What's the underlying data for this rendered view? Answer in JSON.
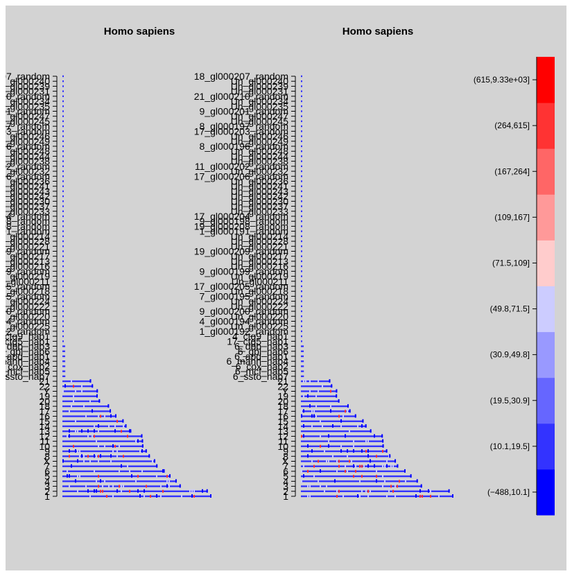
{
  "chart_data": [
    {
      "type": "heatmap",
      "title": "Homo sapiens",
      "chromosomes": [
        "1",
        "2",
        "3",
        "4",
        "5",
        "6",
        "7",
        "X",
        "8",
        "9",
        "10",
        "11",
        "12",
        "13",
        "14",
        "15",
        "16",
        "17",
        "18",
        "20",
        "19",
        "Y",
        "22",
        "21",
        "6_ssto_hap7",
        "6_mcf_hap5",
        "6_cox_hap2",
        "6_mann_hap4",
        "6_apd_hap1",
        "6_qbl_hap6",
        "6_dbb_hap3",
        "17_ctg5_hap1",
        "4_ctg9_hap1",
        "1_gl000192_random",
        "Un_gl000225",
        "4_gl000194_random",
        "Un_gl000220",
        "9_gl000200_random",
        "Un_gl000222",
        "Un_gl000224",
        "7_gl000195_random",
        "Un_gl000218",
        "17_gl000205_random",
        "Un_gl000211",
        "Un_gl000219",
        "9_gl000199_random",
        "Un_gl000216",
        "Un_gl000213",
        "Un_gl000217",
        "19_gl000209_random",
        "Un_gl000221",
        "Un_gl000228",
        "Un_gl000214",
        "1_gl000191_random",
        "19_gl000208_random",
        "9_gl000198_random",
        "17_gl000204_random",
        "Un_gl000233",
        "Un_gl000237",
        "Un_gl000230",
        "Un_gl000242",
        "Un_gl000243",
        "Un_gl000241",
        "Un_gl000236",
        "17_gl000206_random",
        "Un_gl000232",
        "11_gl000202_random",
        "Un_gl000238",
        "Un_gl000244",
        "Un_gl000248",
        "8_gl000196_random",
        "Un_gl000249",
        "Un_gl000246",
        "17_gl000203_random",
        "8_gl000197_random",
        "Un_gl000245",
        "Un_gl000247",
        "9_gl000201_random",
        "Un_gl000235",
        "Un_gl000234",
        "21_gl000210_random",
        "Un_gl000231",
        "Un_gl000239",
        "Un_gl000240",
        "18_gl000207_random"
      ],
      "relative_length": [
        249.3,
        243.2,
        198.0,
        191.2,
        180.9,
        171.1,
        159.1,
        155.3,
        146.4,
        141.2,
        135.5,
        135.0,
        133.9,
        115.2,
        107.3,
        102.5,
        90.4,
        81.2,
        78.1,
        63.0,
        59.1,
        59.4,
        51.3,
        48.1,
        4.9,
        4.8,
        4.8,
        4.7,
        4.6,
        4.6,
        4.6,
        1.7,
        0.6,
        0.5,
        0.2,
        0.2,
        0.2,
        0.2,
        0.2,
        0.2,
        0.2,
        0.2,
        0.2,
        0.2,
        0.2,
        0.2,
        0.2,
        0.2,
        0.2,
        0.2,
        0.2,
        0.2,
        0.2,
        0.2,
        0.1,
        0.1,
        0.1,
        0.1,
        0.1,
        0.1,
        0.1,
        0.1,
        0.1,
        0.1,
        0.1,
        0.1,
        0.1,
        0.1,
        0.1,
        0.1,
        0.1,
        0.1,
        0.1,
        0.1,
        0.1,
        0.1,
        0.1,
        0.1,
        0.1,
        0.1,
        0.1,
        0.1,
        0.1,
        0.1,
        0.1
      ]
    },
    {
      "type": "heatmap",
      "title": "Homo sapiens",
      "chromosomes": [
        "1",
        "2",
        "3",
        "4",
        "5",
        "6",
        "7",
        "X",
        "8",
        "9",
        "10",
        "11",
        "12",
        "13",
        "14",
        "15",
        "16",
        "17",
        "18",
        "20",
        "19",
        "Y",
        "22",
        "21",
        "6_ssto_hap7",
        "6_mcf_hap5",
        "6_cox_hap2",
        "6_mann_hap4",
        "6_apd_hap1",
        "6_qbl_hap6",
        "6_dbb_hap3",
        "17_ctg5_hap1",
        "4_ctg9_hap1",
        "1_gl000192_random",
        "Un_gl000225",
        "4_gl000194_random",
        "Un_gl000220",
        "9_gl000200_random",
        "Un_gl000222",
        "Un_gl000224",
        "7_gl000195_random",
        "Un_gl000218",
        "17_gl000205_random",
        "Un_gl000211",
        "Un_gl000219",
        "9_gl000199_random",
        "Un_gl000216",
        "Un_gl000213",
        "Un_gl000217",
        "19_gl000209_random",
        "Un_gl000221",
        "Un_gl000228",
        "Un_gl000214",
        "1_gl000191_random",
        "19_gl000208_random",
        "9_gl000198_random",
        "17_gl000204_random",
        "Un_gl000233",
        "Un_gl000237",
        "Un_gl000230",
        "Un_gl000242",
        "Un_gl000243",
        "Un_gl000241",
        "Un_gl000236",
        "17_gl000206_random",
        "Un_gl000232",
        "11_gl000202_random",
        "Un_gl000238",
        "Un_gl000244",
        "Un_gl000248",
        "8_gl000196_random",
        "Un_gl000249",
        "Un_gl000246",
        "17_gl000203_random",
        "8_gl000197_random",
        "Un_gl000245",
        "Un_gl000247",
        "9_gl000201_random",
        "Un_gl000235",
        "Un_gl000234",
        "21_gl000210_random",
        "Un_gl000231",
        "Un_gl000239",
        "Un_gl000240",
        "18_gl000207_random"
      ],
      "relative_length": [
        249.3,
        243.2,
        198.0,
        191.2,
        180.9,
        171.1,
        159.1,
        155.3,
        146.4,
        141.2,
        135.5,
        135.0,
        133.9,
        115.2,
        107.3,
        102.5,
        90.4,
        81.2,
        78.1,
        63.0,
        59.1,
        59.4,
        51.3,
        48.1,
        4.9,
        4.8,
        4.8,
        4.7,
        4.6,
        4.6,
        4.6,
        1.7,
        0.6,
        0.5,
        0.2,
        0.2,
        0.2,
        0.2,
        0.2,
        0.2,
        0.2,
        0.2,
        0.2,
        0.2,
        0.2,
        0.2,
        0.2,
        0.2,
        0.2,
        0.2,
        0.2,
        0.2,
        0.2,
        0.2,
        0.1,
        0.1,
        0.1,
        0.1,
        0.1,
        0.1,
        0.1,
        0.1,
        0.1,
        0.1,
        0.1,
        0.1,
        0.1,
        0.1,
        0.1,
        0.1,
        0.1,
        0.1,
        0.1,
        0.1,
        0.1,
        0.1,
        0.1,
        0.1,
        0.1,
        0.1,
        0.1,
        0.1,
        0.1,
        0.1,
        0.1
      ]
    }
  ],
  "legend": {
    "bins": [
      "(−488,10.1]",
      "(10.1,19.5]",
      "(19.5,30.9]",
      "(30.9,49.8]",
      "(49.8,71.5]",
      "(71.5,109]",
      "(109,167]",
      "(167,264]",
      "(264,615]",
      "(615,9.33e+03]"
    ],
    "colors": [
      "#0000ff",
      "#3333ff",
      "#6666ff",
      "#9999ff",
      "#ccccff",
      "#ffcccc",
      "#ff9999",
      "#ff6666",
      "#ff3333",
      "#ff0000"
    ]
  }
}
